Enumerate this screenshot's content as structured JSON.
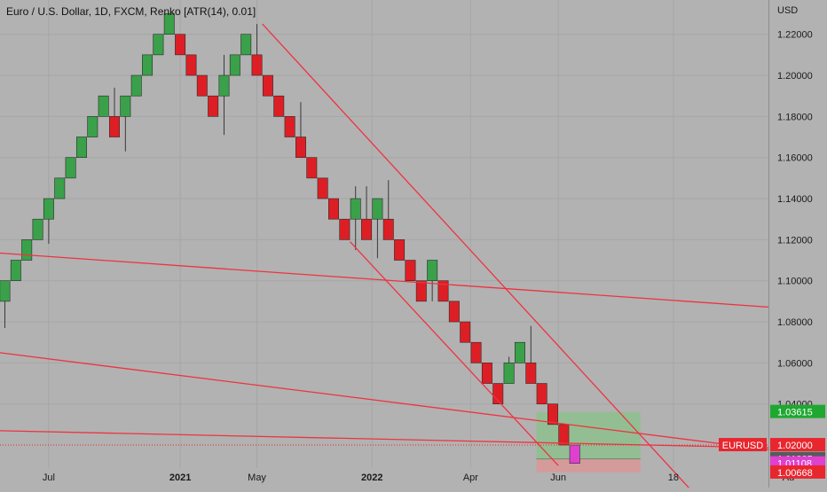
{
  "chart_data": {
    "type": "renko",
    "title": "Euro / U.S. Dollar, 1D, FXCM, Renko [ATR(14), 0.01]",
    "currency": "USD",
    "ylim": [
      0.9993,
      1.2367
    ],
    "yticks": [
      1.22,
      1.2,
      1.18,
      1.16,
      1.14,
      1.12,
      1.1,
      1.08,
      1.06,
      1.04
    ],
    "ytick_labels": [
      "1.22000",
      "1.20000",
      "1.18000",
      "1.16000",
      "1.14000",
      "1.12000",
      "1.10000",
      "1.08000",
      "1.06000",
      "1.04000"
    ],
    "xticks": [
      {
        "label": "Jul",
        "bold": false,
        "index": 4
      },
      {
        "label": "2021",
        "bold": true,
        "index": 16
      },
      {
        "label": "May",
        "bold": false,
        "index": 23
      },
      {
        "label": "2022",
        "bold": true,
        "index": 33.5
      },
      {
        "label": "Apr",
        "bold": false,
        "index": 42.5
      },
      {
        "label": "Jun",
        "bold": false,
        "index": 50.5
      },
      {
        "label": "18",
        "bold": false,
        "index": 61
      },
      {
        "label": "Au",
        "bold": false,
        "index": 71.5
      }
    ],
    "bricks": [
      {
        "dir": "up",
        "low": 1.09,
        "high": 1.1,
        "wick_low": 1.077
      },
      {
        "dir": "up",
        "low": 1.1,
        "high": 1.11
      },
      {
        "dir": "up",
        "low": 1.11,
        "high": 1.12
      },
      {
        "dir": "up",
        "low": 1.12,
        "high": 1.13
      },
      {
        "dir": "up",
        "low": 1.13,
        "high": 1.14,
        "wick_low": 1.118
      },
      {
        "dir": "up",
        "low": 1.14,
        "high": 1.15
      },
      {
        "dir": "up",
        "low": 1.15,
        "high": 1.16
      },
      {
        "dir": "up",
        "low": 1.16,
        "high": 1.17
      },
      {
        "dir": "up",
        "low": 1.17,
        "high": 1.18
      },
      {
        "dir": "up",
        "low": 1.18,
        "high": 1.19
      },
      {
        "dir": "down",
        "low": 1.17,
        "high": 1.18,
        "wick_high": 1.194
      },
      {
        "dir": "up",
        "low": 1.18,
        "high": 1.19,
        "wick_low": 1.163
      },
      {
        "dir": "up",
        "low": 1.19,
        "high": 1.2
      },
      {
        "dir": "up",
        "low": 1.2,
        "high": 1.21
      },
      {
        "dir": "up",
        "low": 1.21,
        "high": 1.22
      },
      {
        "dir": "up",
        "low": 1.22,
        "high": 1.23
      },
      {
        "dir": "down",
        "low": 1.21,
        "high": 1.22
      },
      {
        "dir": "down",
        "low": 1.2,
        "high": 1.21
      },
      {
        "dir": "down",
        "low": 1.19,
        "high": 1.2
      },
      {
        "dir": "down",
        "low": 1.18,
        "high": 1.19
      },
      {
        "dir": "up",
        "low": 1.19,
        "high": 1.2,
        "wick_low": 1.171,
        "wick_high": 1.21
      },
      {
        "dir": "up",
        "low": 1.2,
        "high": 1.21
      },
      {
        "dir": "up",
        "low": 1.21,
        "high": 1.22
      },
      {
        "dir": "down",
        "low": 1.2,
        "high": 1.21,
        "wick_high": 1.225
      },
      {
        "dir": "down",
        "low": 1.19,
        "high": 1.2
      },
      {
        "dir": "down",
        "low": 1.18,
        "high": 1.19
      },
      {
        "dir": "down",
        "low": 1.17,
        "high": 1.18
      },
      {
        "dir": "down",
        "low": 1.16,
        "high": 1.17,
        "wick_high": 1.187
      },
      {
        "dir": "down",
        "low": 1.15,
        "high": 1.16
      },
      {
        "dir": "down",
        "low": 1.14,
        "high": 1.15
      },
      {
        "dir": "down",
        "low": 1.13,
        "high": 1.14
      },
      {
        "dir": "down",
        "low": 1.12,
        "high": 1.13
      },
      {
        "dir": "up",
        "low": 1.13,
        "high": 1.14,
        "wick_low": 1.115,
        "wick_high": 1.146
      },
      {
        "dir": "down",
        "low": 1.12,
        "high": 1.13,
        "wick_high": 1.146
      },
      {
        "dir": "up",
        "low": 1.13,
        "high": 1.14,
        "wick_low": 1.111
      },
      {
        "dir": "down",
        "low": 1.12,
        "high": 1.13,
        "wick_high": 1.149
      },
      {
        "dir": "down",
        "low": 1.11,
        "high": 1.12
      },
      {
        "dir": "down",
        "low": 1.1,
        "high": 1.11
      },
      {
        "dir": "down",
        "low": 1.09,
        "high": 1.1
      },
      {
        "dir": "up",
        "low": 1.1,
        "high": 1.11,
        "wick_low": 1.09
      },
      {
        "dir": "down",
        "low": 1.09,
        "high": 1.1
      },
      {
        "dir": "down",
        "low": 1.08,
        "high": 1.09
      },
      {
        "dir": "down",
        "low": 1.07,
        "high": 1.08
      },
      {
        "dir": "down",
        "low": 1.06,
        "high": 1.07
      },
      {
        "dir": "down",
        "low": 1.05,
        "high": 1.06
      },
      {
        "dir": "down",
        "low": 1.04,
        "high": 1.05
      },
      {
        "dir": "up",
        "low": 1.05,
        "high": 1.06,
        "wick_high": 1.063
      },
      {
        "dir": "up",
        "low": 1.06,
        "high": 1.07
      },
      {
        "dir": "down",
        "low": 1.05,
        "high": 1.06,
        "wick_high": 1.078
      },
      {
        "dir": "down",
        "low": 1.04,
        "high": 1.05
      },
      {
        "dir": "down",
        "low": 1.03,
        "high": 1.04
      },
      {
        "dir": "down",
        "low": 1.02,
        "high": 1.03
      },
      {
        "dir": "projected",
        "low": 1.01108,
        "high": 1.02,
        "color": "#e040d0"
      }
    ],
    "trendlines": [
      {
        "x1": 23.5,
        "y1": 1.225,
        "x2": 64,
        "y2": 0.99
      },
      {
        "x1": 31.5,
        "y1": 1.119,
        "x2": 50.5,
        "y2": 1.01
      },
      {
        "x1": -0.5,
        "y1": 1.1135,
        "x2": 71.5,
        "y2": 1.0865
      },
      {
        "x1": -0.5,
        "y1": 1.065,
        "x2": 71.5,
        "y2": 1.0165
      },
      {
        "x1": -0.5,
        "y1": 1.027,
        "x2": 71.5,
        "y2": 1.0185
      }
    ],
    "trade_box": {
      "x_start": 49,
      "x_end": 58,
      "entry": 1.01325,
      "target": 1.03615,
      "stop": 1.00668,
      "profit_color": "#8fbf8f",
      "loss_color": "#d89898"
    },
    "current_price_line": 1.02,
    "price_tags": [
      {
        "label": "",
        "value": "1.03615",
        "price": 1.03615,
        "color": "#1ea830"
      },
      {
        "label": "EURUSD",
        "value": "1.02000",
        "price": 1.02,
        "color": "#e8262e"
      },
      {
        "label": "",
        "value": "1.01325",
        "price": 1.01325,
        "color": "#5a5a5a"
      },
      {
        "label": "",
        "value": "1.01108",
        "price": 1.01108,
        "color": "#e040d0"
      },
      {
        "label": "",
        "value": "1.00668",
        "price": 1.00668,
        "color": "#e8262e"
      }
    ],
    "colors": {
      "background": "#b2b2b2",
      "up": "#3aa14a",
      "down": "#dd1f25",
      "trendline": "#ee3340",
      "grid": "#a6a6a6",
      "price_line": "#e8262e"
    },
    "grid": true
  }
}
